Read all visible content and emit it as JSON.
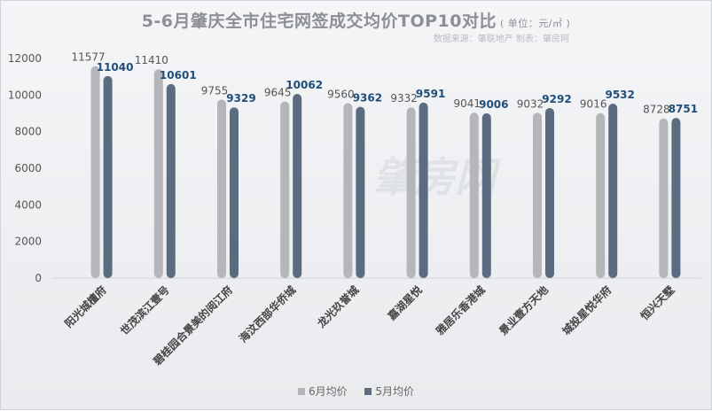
{
  "title": "5-6月肇庆全市住宅网签成交均价TOP10对比",
  "unit": "( 单位：元/㎡ )",
  "source": "数据来源：肇联地产  制表：肇房网",
  "watermark": "肇房网",
  "chart_data": {
    "type": "bar",
    "title": "5-6月肇庆全市住宅网签成交均价TOP10对比",
    "ylim": [
      0,
      12000
    ],
    "yticks": [
      0,
      2000,
      4000,
      6000,
      8000,
      10000,
      12000
    ],
    "categories": [
      "阳光城檀府",
      "世茂滨江壹号",
      "碧桂园合景美的阅江府",
      "海汶西部华侨城",
      "龙光玖誉城",
      "嘉湖星悦",
      "雅居乐香港城",
      "景业壹方天地",
      "城投星悦华府",
      "恒兴天墅"
    ],
    "series": [
      {
        "name": "6月均价",
        "color": "#b4b6b9",
        "values": [
          11577,
          11410,
          9755,
          9645,
          9560,
          9332,
          9041,
          9032,
          9016,
          8728
        ]
      },
      {
        "name": "5月均价",
        "color": "#5b6b80",
        "values": [
          11040,
          10601,
          9329,
          10062,
          9362,
          9591,
          9006,
          9292,
          9532,
          8751
        ]
      }
    ],
    "legend_position": "bottom",
    "grid": false
  }
}
